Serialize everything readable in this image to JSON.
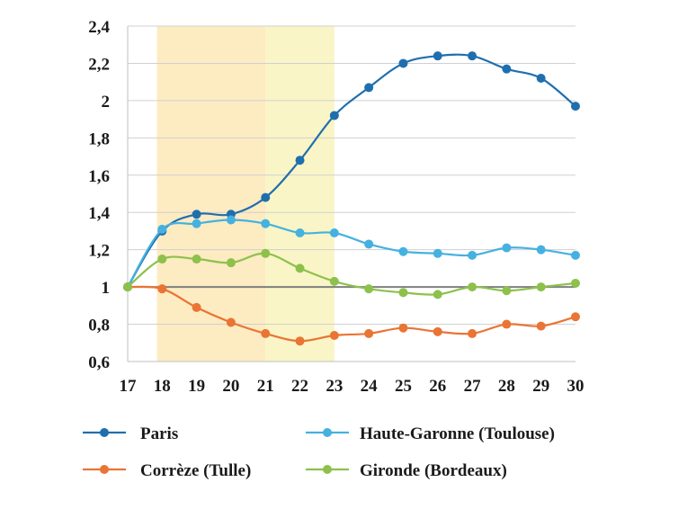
{
  "chart_data": {
    "type": "line",
    "x": [
      17,
      18,
      19,
      20,
      21,
      22,
      23,
      24,
      25,
      26,
      27,
      28,
      29,
      30
    ],
    "ylim": [
      0.6,
      2.4
    ],
    "yticks": [
      "0,6",
      "0,8",
      "1",
      "1,2",
      "1,4",
      "1,6",
      "1,8",
      "2",
      "2,2",
      "2,4"
    ],
    "ytick_values": [
      0.6,
      0.8,
      1.0,
      1.2,
      1.4,
      1.6,
      1.8,
      2.0,
      2.2,
      2.4
    ],
    "xticks": [
      "17",
      "18",
      "19",
      "20",
      "21",
      "22",
      "23",
      "24",
      "25",
      "26",
      "27",
      "28",
      "29",
      "30"
    ],
    "grid": "horizontal",
    "reference_line": 1.0,
    "shaded_ranges": [
      {
        "from": 17.85,
        "to": 21,
        "color": "#fdebc2"
      },
      {
        "from": 21,
        "to": 23,
        "color": "#f9f5c6"
      }
    ],
    "series": [
      {
        "name": "Paris",
        "color": "#1f6fae",
        "values": [
          1.0,
          1.3,
          1.39,
          1.39,
          1.48,
          1.68,
          1.92,
          2.07,
          2.2,
          2.24,
          2.24,
          2.17,
          2.12,
          1.97
        ]
      },
      {
        "name": "Haute-Garonne (Toulouse)",
        "color": "#45b1e0",
        "values": [
          1.0,
          1.31,
          1.34,
          1.36,
          1.34,
          1.29,
          1.29,
          1.23,
          1.19,
          1.18,
          1.17,
          1.21,
          1.2,
          1.17
        ]
      },
      {
        "name": "Corrèze (Tulle)",
        "color": "#ea7434",
        "values": [
          1.0,
          0.99,
          0.89,
          0.81,
          0.75,
          0.71,
          0.74,
          0.75,
          0.78,
          0.76,
          0.75,
          0.8,
          0.79,
          0.84
        ]
      },
      {
        "name": "Gironde (Bordeaux)",
        "color": "#8dc14c",
        "values": [
          1.0,
          1.15,
          1.15,
          1.13,
          1.18,
          1.1,
          1.03,
          0.99,
          0.97,
          0.96,
          1.0,
          0.98,
          1.0,
          1.02
        ]
      }
    ],
    "legend_position": "bottom"
  }
}
